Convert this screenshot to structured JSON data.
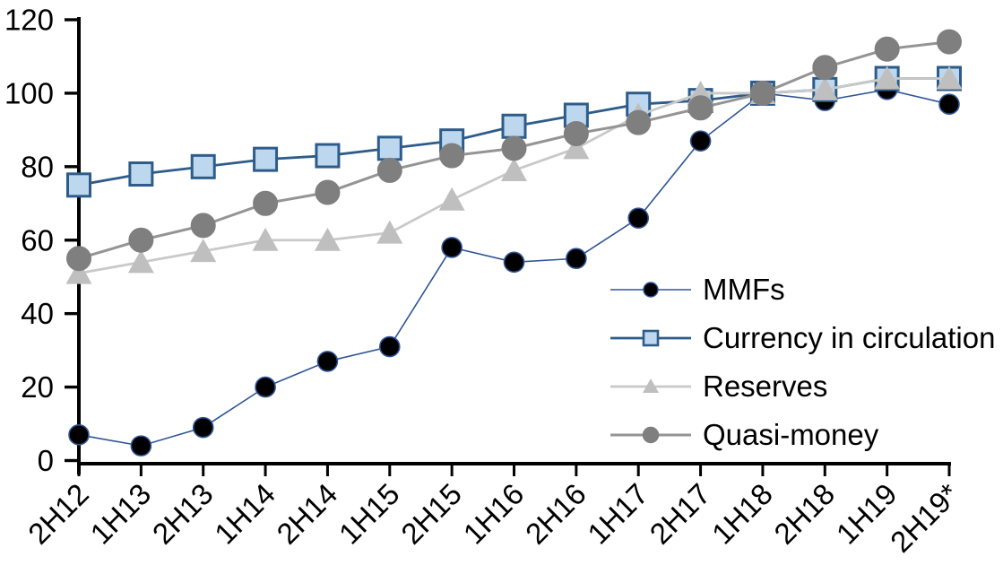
{
  "chart_data": {
    "type": "line",
    "title": "",
    "categories": [
      "2H12",
      "1H13",
      "2H13",
      "1H14",
      "2H14",
      "1H15",
      "2H15",
      "1H16",
      "2H16",
      "1H17",
      "2H17",
      "1H18",
      "2H18",
      "1H19",
      "2H19*"
    ],
    "series": [
      {
        "name": "MMFs",
        "marker": "circle",
        "marker_color": "#000000",
        "marker_border": "#2f5597",
        "line_color": "#2f5597",
        "values": [
          7,
          4,
          9,
          20,
          27,
          31,
          58,
          54,
          55,
          66,
          87,
          100,
          98,
          101,
          97
        ]
      },
      {
        "name": "Currency in circulation",
        "marker": "square",
        "marker_color": "#bdd7ee",
        "marker_border": "#2e5c8a",
        "line_color": "#2e5c8a",
        "values": [
          75,
          78,
          80,
          82,
          83,
          85,
          87,
          91,
          94,
          97,
          98,
          100,
          101,
          104,
          104
        ]
      },
      {
        "name": "Reserves",
        "marker": "triangle",
        "marker_color": "#bfbfbf",
        "marker_border": "#bfbfbf",
        "line_color": "#c9c9c9",
        "values": [
          51,
          54,
          57,
          60,
          60,
          62,
          71,
          79,
          85,
          94,
          100,
          100,
          101,
          104,
          104
        ]
      },
      {
        "name": "Quasi-money",
        "marker": "circle",
        "marker_color": "#7f7f7f",
        "marker_border": "#7f7f7f",
        "line_color": "#949494",
        "values": [
          55,
          60,
          64,
          70,
          73,
          79,
          83,
          85,
          89,
          92,
          96,
          100,
          107,
          112,
          114
        ]
      }
    ],
    "xlabel": "",
    "ylabel": "",
    "y_ticks": [
      0,
      20,
      40,
      60,
      80,
      100,
      120
    ],
    "ylim": [
      0,
      120
    ],
    "grid": false,
    "legend_position": "inside lower right",
    "axis_color": "#000000",
    "text_color": "#000000"
  }
}
